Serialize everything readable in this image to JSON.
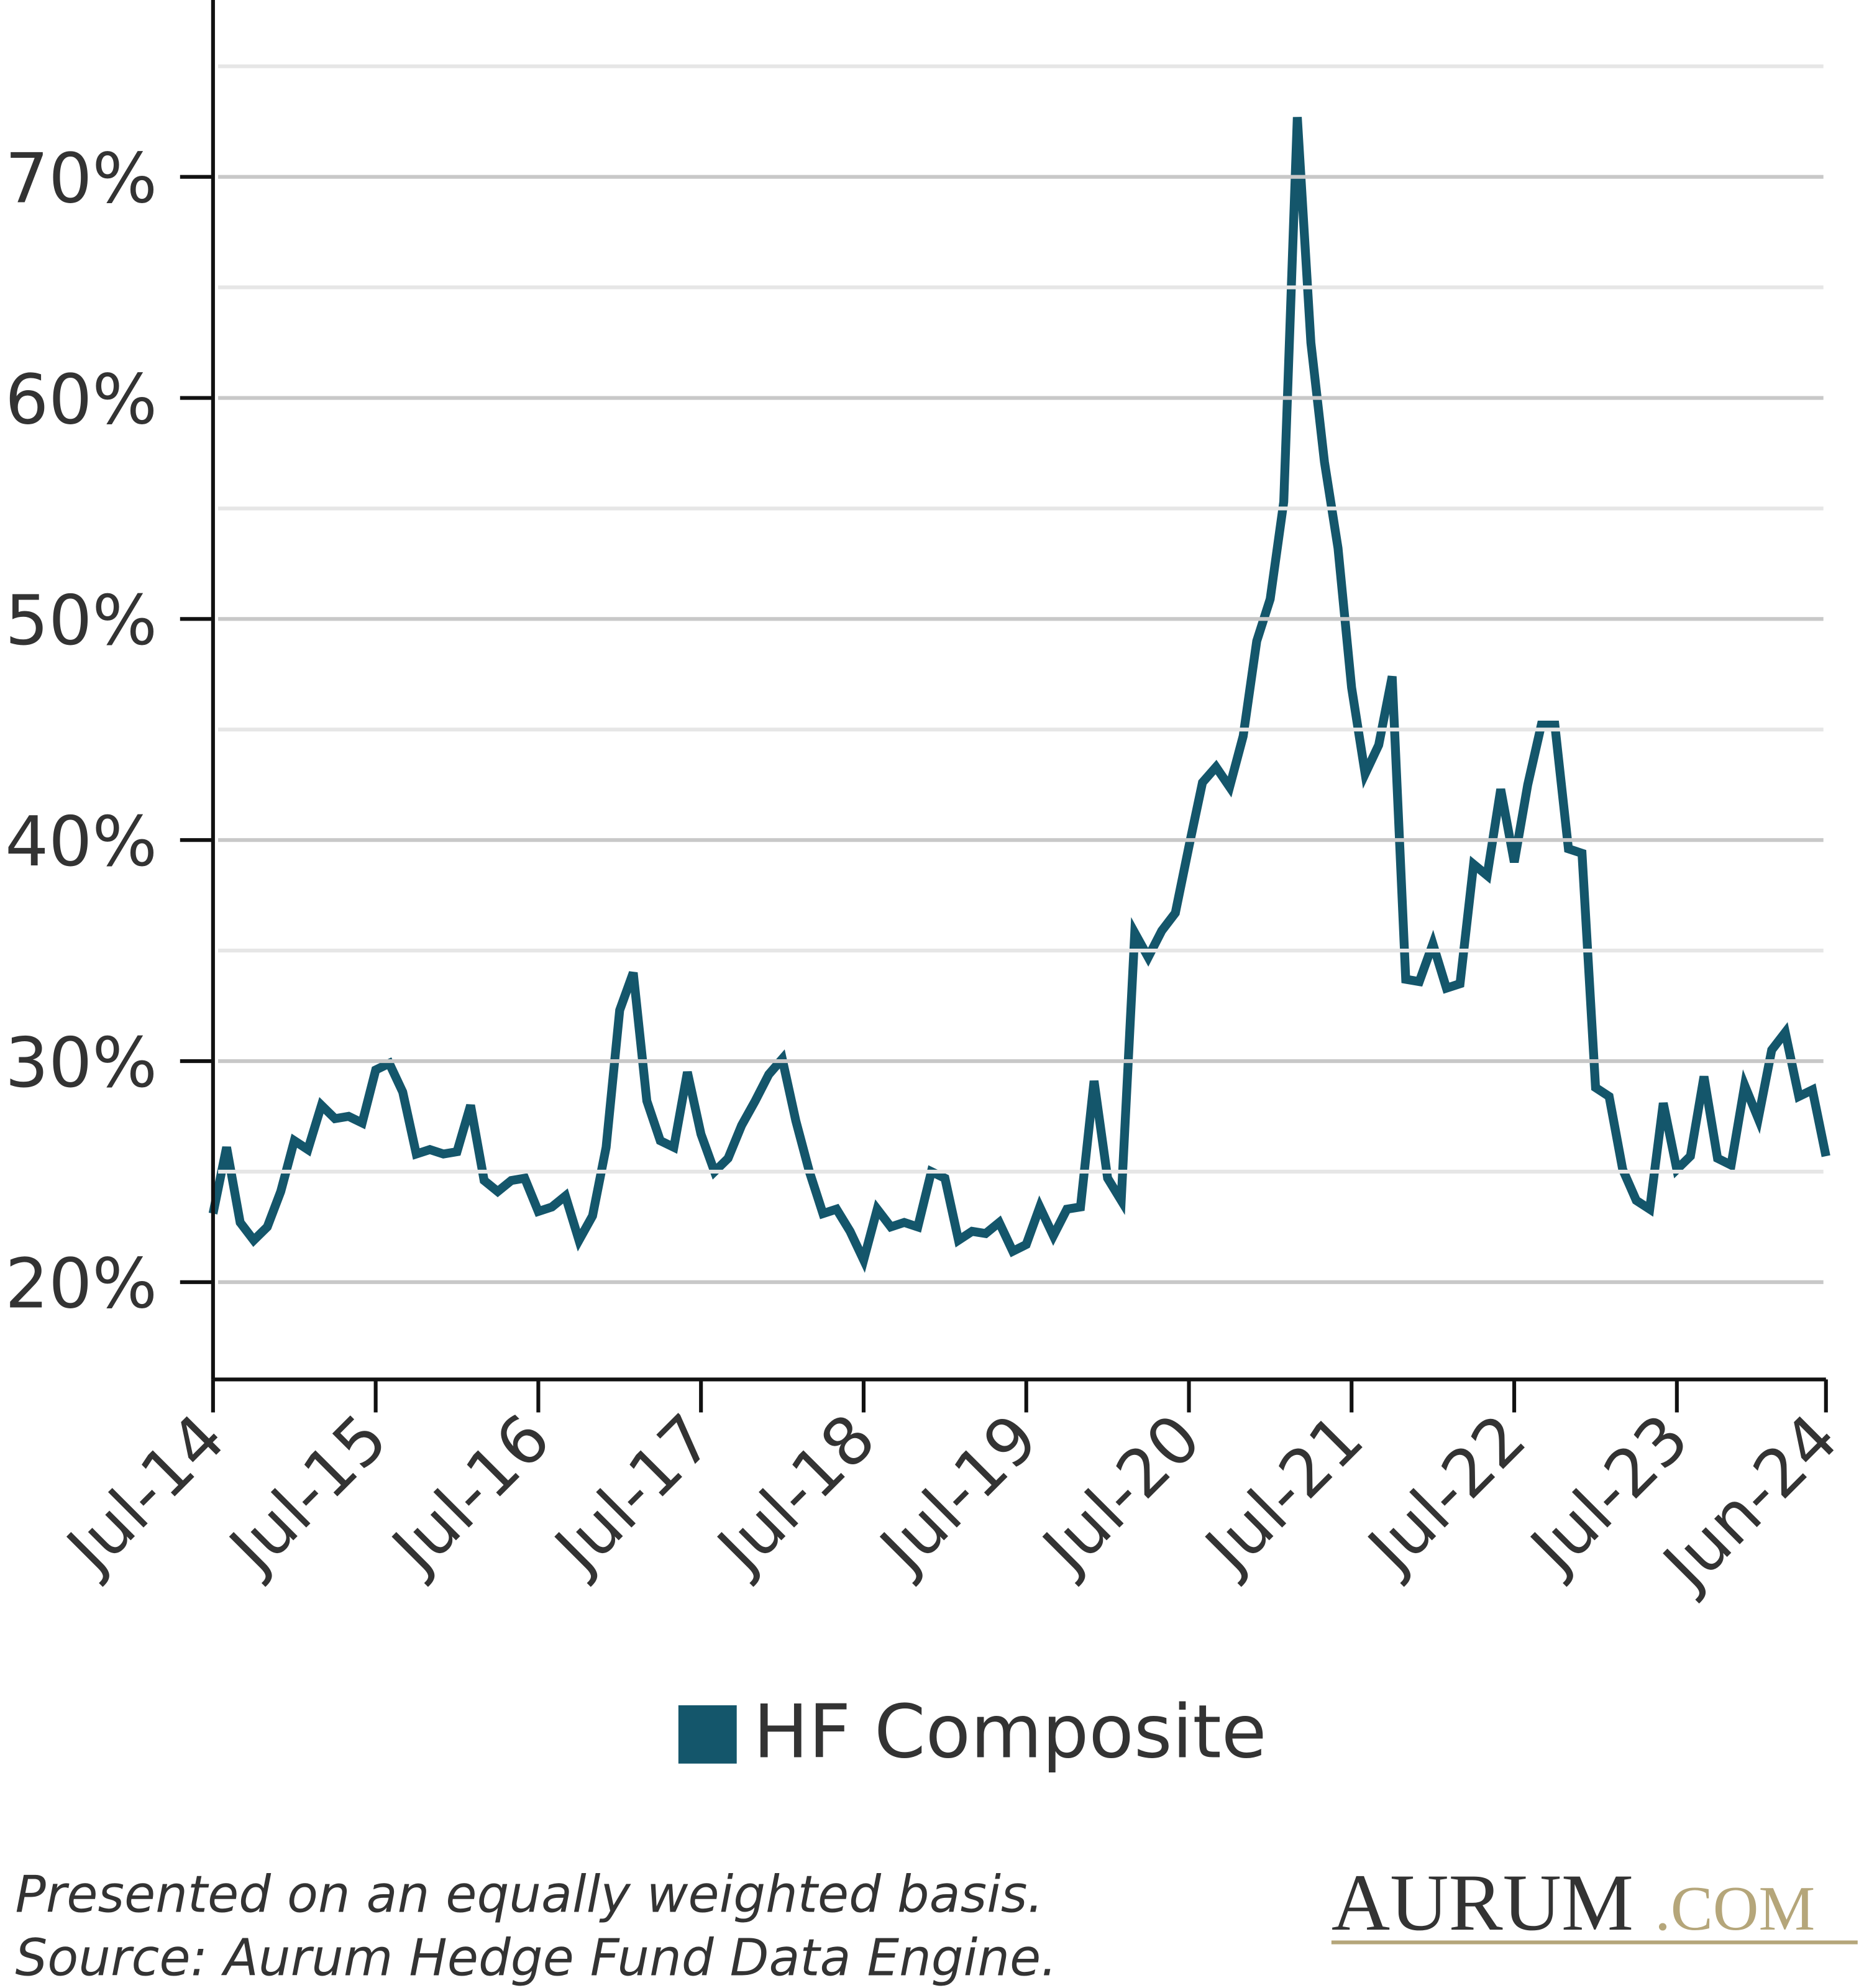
{
  "chart_data": {
    "type": "line",
    "categories": [
      "Jul-14",
      null,
      null,
      null,
      null,
      null,
      null,
      null,
      null,
      null,
      null,
      null,
      "Jul-15",
      null,
      null,
      null,
      null,
      null,
      null,
      null,
      null,
      null,
      null,
      null,
      "Jul-16",
      null,
      null,
      null,
      null,
      null,
      null,
      null,
      null,
      null,
      null,
      null,
      "Jul-17",
      null,
      null,
      null,
      null,
      null,
      null,
      null,
      null,
      null,
      null,
      null,
      "Jul-18",
      null,
      null,
      null,
      null,
      null,
      null,
      null,
      null,
      null,
      null,
      null,
      "Jul-19",
      null,
      null,
      null,
      null,
      null,
      null,
      null,
      null,
      null,
      null,
      null,
      "Jul-20",
      null,
      null,
      null,
      null,
      null,
      null,
      null,
      null,
      null,
      null,
      null,
      "Jul-21",
      null,
      null,
      null,
      null,
      null,
      null,
      null,
      null,
      null,
      null,
      null,
      "Jul-22",
      null,
      null,
      null,
      null,
      null,
      null,
      null,
      null,
      null,
      null,
      null,
      "Jul-23",
      null,
      null,
      null,
      null,
      null,
      null,
      null,
      null,
      null,
      null,
      "Jun-24"
    ],
    "series": [
      {
        "name": "HF Composite",
        "color": "#14566b",
        "values": [
          23.1,
          26.1,
          22.7,
          21.9,
          22.5,
          24.1,
          26.4,
          26.0,
          28.0,
          27.4,
          27.5,
          27.2,
          29.6,
          29.9,
          28.6,
          25.8,
          26.0,
          25.8,
          25.9,
          28.0,
          24.6,
          24.1,
          24.6,
          24.7,
          23.2,
          23.4,
          23.9,
          21.9,
          23.0,
          26.1,
          32.3,
          34.0,
          28.2,
          26.4,
          26.1,
          29.5,
          26.7,
          25.0,
          25.6,
          27.1,
          28.2,
          29.4,
          30.1,
          27.3,
          25.0,
          23.1,
          23.3,
          22.3,
          21.0,
          23.3,
          22.5,
          22.7,
          22.5,
          25.0,
          24.7,
          21.9,
          22.3,
          22.2,
          22.7,
          21.4,
          21.7,
          23.4,
          22.1,
          23.3,
          23.4,
          29.1,
          24.7,
          23.7,
          35.8,
          34.7,
          35.9,
          36.7,
          39.7,
          42.6,
          43.3,
          42.4,
          44.7,
          49.0,
          50.9,
          55.3,
          72.7,
          62.5,
          57.1,
          53.2,
          46.9,
          43.0,
          44.3,
          47.4,
          33.7,
          33.6,
          35.3,
          33.3,
          33.5,
          38.9,
          38.4,
          42.3,
          39.0,
          42.5,
          45.2,
          45.2,
          39.6,
          39.4,
          28.8,
          28.4,
          25.1,
          23.7,
          23.3,
          28.1,
          25.1,
          25.7,
          29.3,
          25.6,
          25.3,
          28.9,
          27.4,
          30.5,
          31.3,
          28.4,
          28.7,
          25.7
        ]
      }
    ],
    "ylim": [
      15.6,
      78
    ],
    "yticks": [
      {
        "value": 20,
        "label": "20%"
      },
      {
        "value": 30,
        "label": "30%"
      },
      {
        "value": 40,
        "label": "40%"
      },
      {
        "value": 50,
        "label": "50%"
      },
      {
        "value": 60,
        "label": "60%"
      },
      {
        "value": 70,
        "label": "70%"
      }
    ],
    "minor_grid": [
      25,
      35,
      45,
      55,
      65,
      75
    ],
    "grid": true,
    "legend": "bottom",
    "notes": [
      "Presented on an equally weighted basis.",
      "Source: Aurum Hedge Fund Data Engine."
    ],
    "logo": {
      "name": "AURUM",
      "suffix": ".COM"
    }
  }
}
